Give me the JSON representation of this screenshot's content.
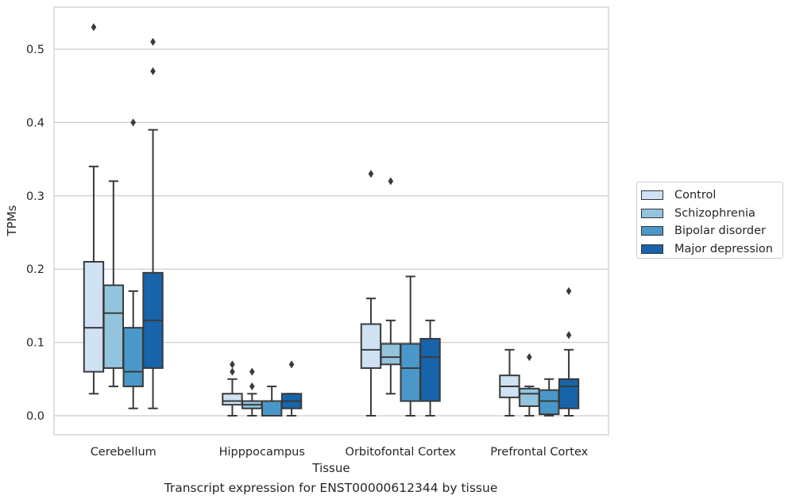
{
  "caption": "Transcript expression for ENST00000612344 by tissue",
  "chart_data": {
    "type": "box",
    "xlabel": "Tissue",
    "ylabel": "TPMs",
    "ylim": [
      -0.025,
      0.56
    ],
    "yticks": [
      0.0,
      0.1,
      0.2,
      0.3,
      0.4,
      0.5
    ],
    "ytick_labels": [
      "0.0",
      "0.1",
      "0.2",
      "0.3",
      "0.4",
      "0.5"
    ],
    "grid": "horizontal",
    "legend_position": "right, outside plot",
    "categories": [
      "Cerebellum",
      "Hipppocampus",
      "Orbitofontal Cortex",
      "Prefrontal Cortex"
    ],
    "series": [
      {
        "name": "Control",
        "color": "#cfe1f2",
        "boxes": [
          {
            "whislo": 0.03,
            "q1": 0.06,
            "med": 0.12,
            "q3": 0.21,
            "whishi": 0.34,
            "fliers": [
              0.53
            ]
          },
          {
            "whislo": 0.0,
            "q1": 0.015,
            "med": 0.02,
            "q3": 0.03,
            "whishi": 0.05,
            "fliers": [
              0.06,
              0.07
            ]
          },
          {
            "whislo": 0.0,
            "q1": 0.065,
            "med": 0.09,
            "q3": 0.125,
            "whishi": 0.16,
            "fliers": [
              0.33
            ]
          },
          {
            "whislo": 0.0,
            "q1": 0.025,
            "med": 0.04,
            "q3": 0.055,
            "whishi": 0.09,
            "fliers": []
          }
        ]
      },
      {
        "name": "Schizophrenia",
        "color": "#93c4de",
        "boxes": [
          {
            "whislo": 0.04,
            "q1": 0.065,
            "med": 0.14,
            "q3": 0.178,
            "whishi": 0.32,
            "fliers": []
          },
          {
            "whislo": 0.0,
            "q1": 0.01,
            "med": 0.015,
            "q3": 0.02,
            "whishi": 0.03,
            "fliers": [
              0.04,
              0.06
            ]
          },
          {
            "whislo": 0.03,
            "q1": 0.07,
            "med": 0.08,
            "q3": 0.098,
            "whishi": 0.13,
            "fliers": [
              0.32
            ]
          },
          {
            "whislo": 0.0,
            "q1": 0.013,
            "med": 0.03,
            "q3": 0.037,
            "whishi": 0.04,
            "fliers": [
              0.08
            ]
          }
        ]
      },
      {
        "name": "Bipolar disorder",
        "color": "#4a98c9",
        "boxes": [
          {
            "whislo": 0.01,
            "q1": 0.04,
            "med": 0.06,
            "q3": 0.12,
            "whishi": 0.17,
            "fliers": [
              0.4
            ]
          },
          {
            "whislo": 0.0,
            "q1": 0.0,
            "med": 0.0,
            "q3": 0.02,
            "whishi": 0.04,
            "fliers": []
          },
          {
            "whislo": 0.0,
            "q1": 0.02,
            "med": 0.065,
            "q3": 0.098,
            "whishi": 0.19,
            "fliers": []
          },
          {
            "whislo": 0.0,
            "q1": 0.002,
            "med": 0.02,
            "q3": 0.035,
            "whishi": 0.05,
            "fliers": []
          }
        ]
      },
      {
        "name": "Major depression",
        "color": "#1764ab",
        "boxes": [
          {
            "whislo": 0.01,
            "q1": 0.065,
            "med": 0.13,
            "q3": 0.195,
            "whishi": 0.39,
            "fliers": [
              0.47,
              0.51
            ]
          },
          {
            "whislo": 0.0,
            "q1": 0.01,
            "med": 0.02,
            "q3": 0.03,
            "whishi": 0.03,
            "fliers": [
              0.07
            ]
          },
          {
            "whislo": 0.0,
            "q1": 0.02,
            "med": 0.08,
            "q3": 0.105,
            "whishi": 0.13,
            "fliers": []
          },
          {
            "whislo": 0.0,
            "q1": 0.01,
            "med": 0.04,
            "q3": 0.05,
            "whishi": 0.09,
            "fliers": [
              0.11,
              0.17
            ]
          }
        ]
      }
    ]
  }
}
